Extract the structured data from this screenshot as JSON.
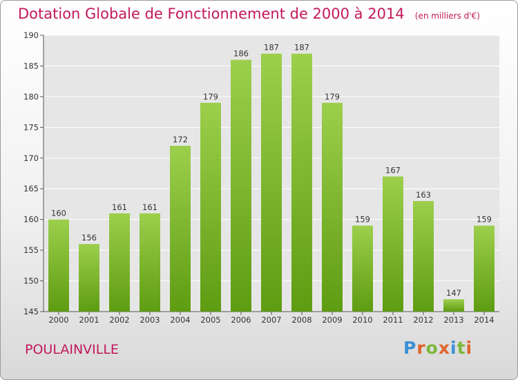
{
  "header": {
    "title": "Dotation Globale de Fonctionnement de 2000 à 2014",
    "subtitle": "(en milliers d'€)"
  },
  "footer": {
    "city": "POULAINVILLE",
    "brand": "Proxiti"
  },
  "colors": {
    "title": "#c2185b",
    "bar_top": "#9ccf4c",
    "bar_bottom": "#5e9c12",
    "logo_letters": [
      "#3b8fd4",
      "#e0632d",
      "#7db83a",
      "#e0632d",
      "#3b8fd4",
      "#7db83a",
      "#e0632d"
    ]
  },
  "chart_data": {
    "type": "bar",
    "categories": [
      "2000",
      "2001",
      "2002",
      "2003",
      "2004",
      "2005",
      "2006",
      "2007",
      "2008",
      "2009",
      "2010",
      "2011",
      "2012",
      "2013",
      "2014"
    ],
    "values": [
      160,
      156,
      161,
      161,
      172,
      179,
      186,
      187,
      187,
      179,
      159,
      167,
      163,
      147,
      159
    ],
    "ylim": [
      145,
      190
    ],
    "yticks": [
      145,
      150,
      155,
      160,
      165,
      170,
      175,
      180,
      185,
      190
    ],
    "grid": true,
    "xlabel": "",
    "ylabel": ""
  }
}
